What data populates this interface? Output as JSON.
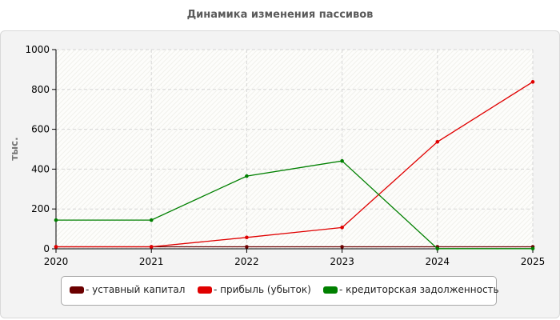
{
  "title": "Динамика изменения пассивов",
  "chart_data": {
    "type": "line",
    "title": "Динамика изменения пассивов",
    "xlabel": "",
    "ylabel": "тыс.",
    "x": [
      "2020",
      "2021",
      "2022",
      "2023",
      "2024",
      "2025"
    ],
    "ylim": [
      0,
      1000
    ],
    "yticks": [
      "0",
      "200",
      "400",
      "600",
      "800",
      "1000"
    ],
    "grid": true,
    "legend_position": "bottom",
    "series": [
      {
        "name": "- уставный капитал",
        "color": "#6b0000",
        "values": [
          10,
          10,
          10,
          10,
          10,
          10
        ]
      },
      {
        "name": "- прибыль (убыток)",
        "color": "#e00000",
        "values": [
          10,
          10,
          57,
          107,
          537,
          838
        ]
      },
      {
        "name": "- кредиторская задолженность",
        "color": "#008000",
        "values": [
          144,
          144,
          365,
          441,
          1,
          1
        ]
      }
    ]
  }
}
